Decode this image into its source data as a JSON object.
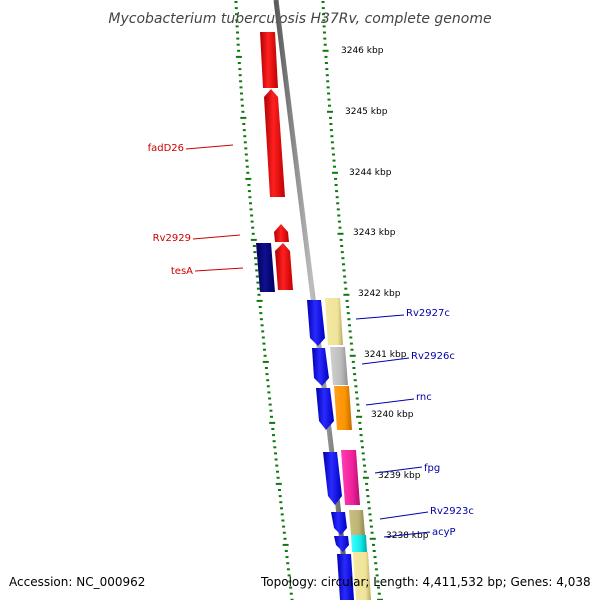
{
  "title": "Mycobacterium tuberculosis H37Rv, complete genome",
  "colors": {
    "backbone": "#888888",
    "tick": "#117711",
    "forward_label": "#cc0000",
    "reverse_label": "#0000aa"
  },
  "kbp_labels": [
    "3246 kbp",
    "3245 kbp",
    "3244 kbp",
    "3243 kbp",
    "3242 kbp",
    "3241 kbp",
    "3240 kbp",
    "3239 kbp",
    "3238 kbp"
  ],
  "genes": [
    {
      "name": "fadD26",
      "strand": "forward"
    },
    {
      "name": "Rv2929",
      "strand": "forward"
    },
    {
      "name": "tesA",
      "strand": "forward"
    },
    {
      "name": "Rv2927c",
      "strand": "reverse"
    },
    {
      "name": "Rv2926c",
      "strand": "reverse"
    },
    {
      "name": "rnc",
      "strand": "reverse"
    },
    {
      "name": "fpg",
      "strand": "reverse"
    },
    {
      "name": "Rv2923c",
      "strand": "reverse"
    },
    {
      "name": "acyP",
      "strand": "reverse"
    }
  ],
  "footer": {
    "accession": "Accession: NC_000962",
    "summary": "Topology: circular; Length: 4,411,532 bp; Genes: 4,038"
  }
}
